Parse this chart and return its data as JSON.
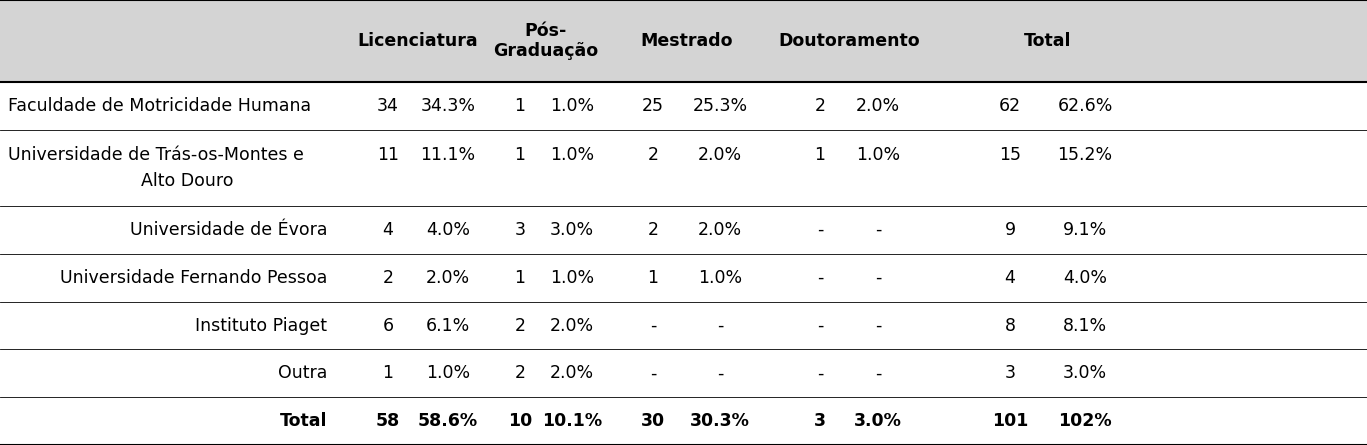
{
  "header_bg": "#d4d4d4",
  "fig_bg": "#ffffff",
  "col_headers": [
    "",
    "Licenciatura",
    "Pós-\nGraduação",
    "Mestrado",
    "Doutoramento",
    "Total"
  ],
  "rows": [
    {
      "label": "Faculdade de Motricidade Humana",
      "lic_n": "34",
      "lic_p": "34.3%",
      "pos_n": "1",
      "pos_p": "1.0%",
      "mes_n": "25",
      "mes_p": "25.3%",
      "dou_n": "2",
      "dou_p": "2.0%",
      "tot_n": "62",
      "tot_p": "62.6%",
      "label_align": "left",
      "extra_label": null,
      "is_bold": false
    },
    {
      "label": "Universidade de Trás-os-Montes e",
      "lic_n": "11",
      "lic_p": "11.1%",
      "pos_n": "1",
      "pos_p": "1.0%",
      "mes_n": "2",
      "mes_p": "2.0%",
      "dou_n": "1",
      "dou_p": "1.0%",
      "tot_n": "15",
      "tot_p": "15.2%",
      "label_align": "left",
      "extra_label": "Alto Douro",
      "is_bold": false
    },
    {
      "label": "Universidade de Évora",
      "lic_n": "4",
      "lic_p": "4.0%",
      "pos_n": "3",
      "pos_p": "3.0%",
      "mes_n": "2",
      "mes_p": "2.0%",
      "dou_n": "-",
      "dou_p": "-",
      "tot_n": "9",
      "tot_p": "9.1%",
      "label_align": "right",
      "extra_label": null,
      "is_bold": false
    },
    {
      "label": "Universidade Fernando Pessoa",
      "lic_n": "2",
      "lic_p": "2.0%",
      "pos_n": "1",
      "pos_p": "1.0%",
      "mes_n": "1",
      "mes_p": "1.0%",
      "dou_n": "-",
      "dou_p": "-",
      "tot_n": "4",
      "tot_p": "4.0%",
      "label_align": "right",
      "extra_label": null,
      "is_bold": false
    },
    {
      "label": "Instituto Piaget",
      "lic_n": "6",
      "lic_p": "6.1%",
      "pos_n": "2",
      "pos_p": "2.0%",
      "mes_n": "-",
      "mes_p": "-",
      "dou_n": "-",
      "dou_p": "-",
      "tot_n": "8",
      "tot_p": "8.1%",
      "label_align": "right",
      "extra_label": null,
      "is_bold": false
    },
    {
      "label": "Outra",
      "lic_n": "1",
      "lic_p": "1.0%",
      "pos_n": "2",
      "pos_p": "2.0%",
      "mes_n": "-",
      "mes_p": "-",
      "dou_n": "-",
      "dou_p": "-",
      "tot_n": "3",
      "tot_p": "3.0%",
      "label_align": "right",
      "extra_label": null,
      "is_bold": false
    },
    {
      "label": "Total",
      "lic_n": "58",
      "lic_p": "58.6%",
      "pos_n": "10",
      "pos_p": "10.1%",
      "mes_n": "30",
      "mes_p": "30.3%",
      "dou_n": "3",
      "dou_p": "3.0%",
      "tot_n": "101",
      "tot_p": "102%",
      "label_align": "right",
      "extra_label": null,
      "is_bold": true
    }
  ],
  "font_size": 12.5,
  "header_font_size": 12.5,
  "line_color": "#000000",
  "thick_lw": 1.5,
  "thin_lw": 0.6
}
